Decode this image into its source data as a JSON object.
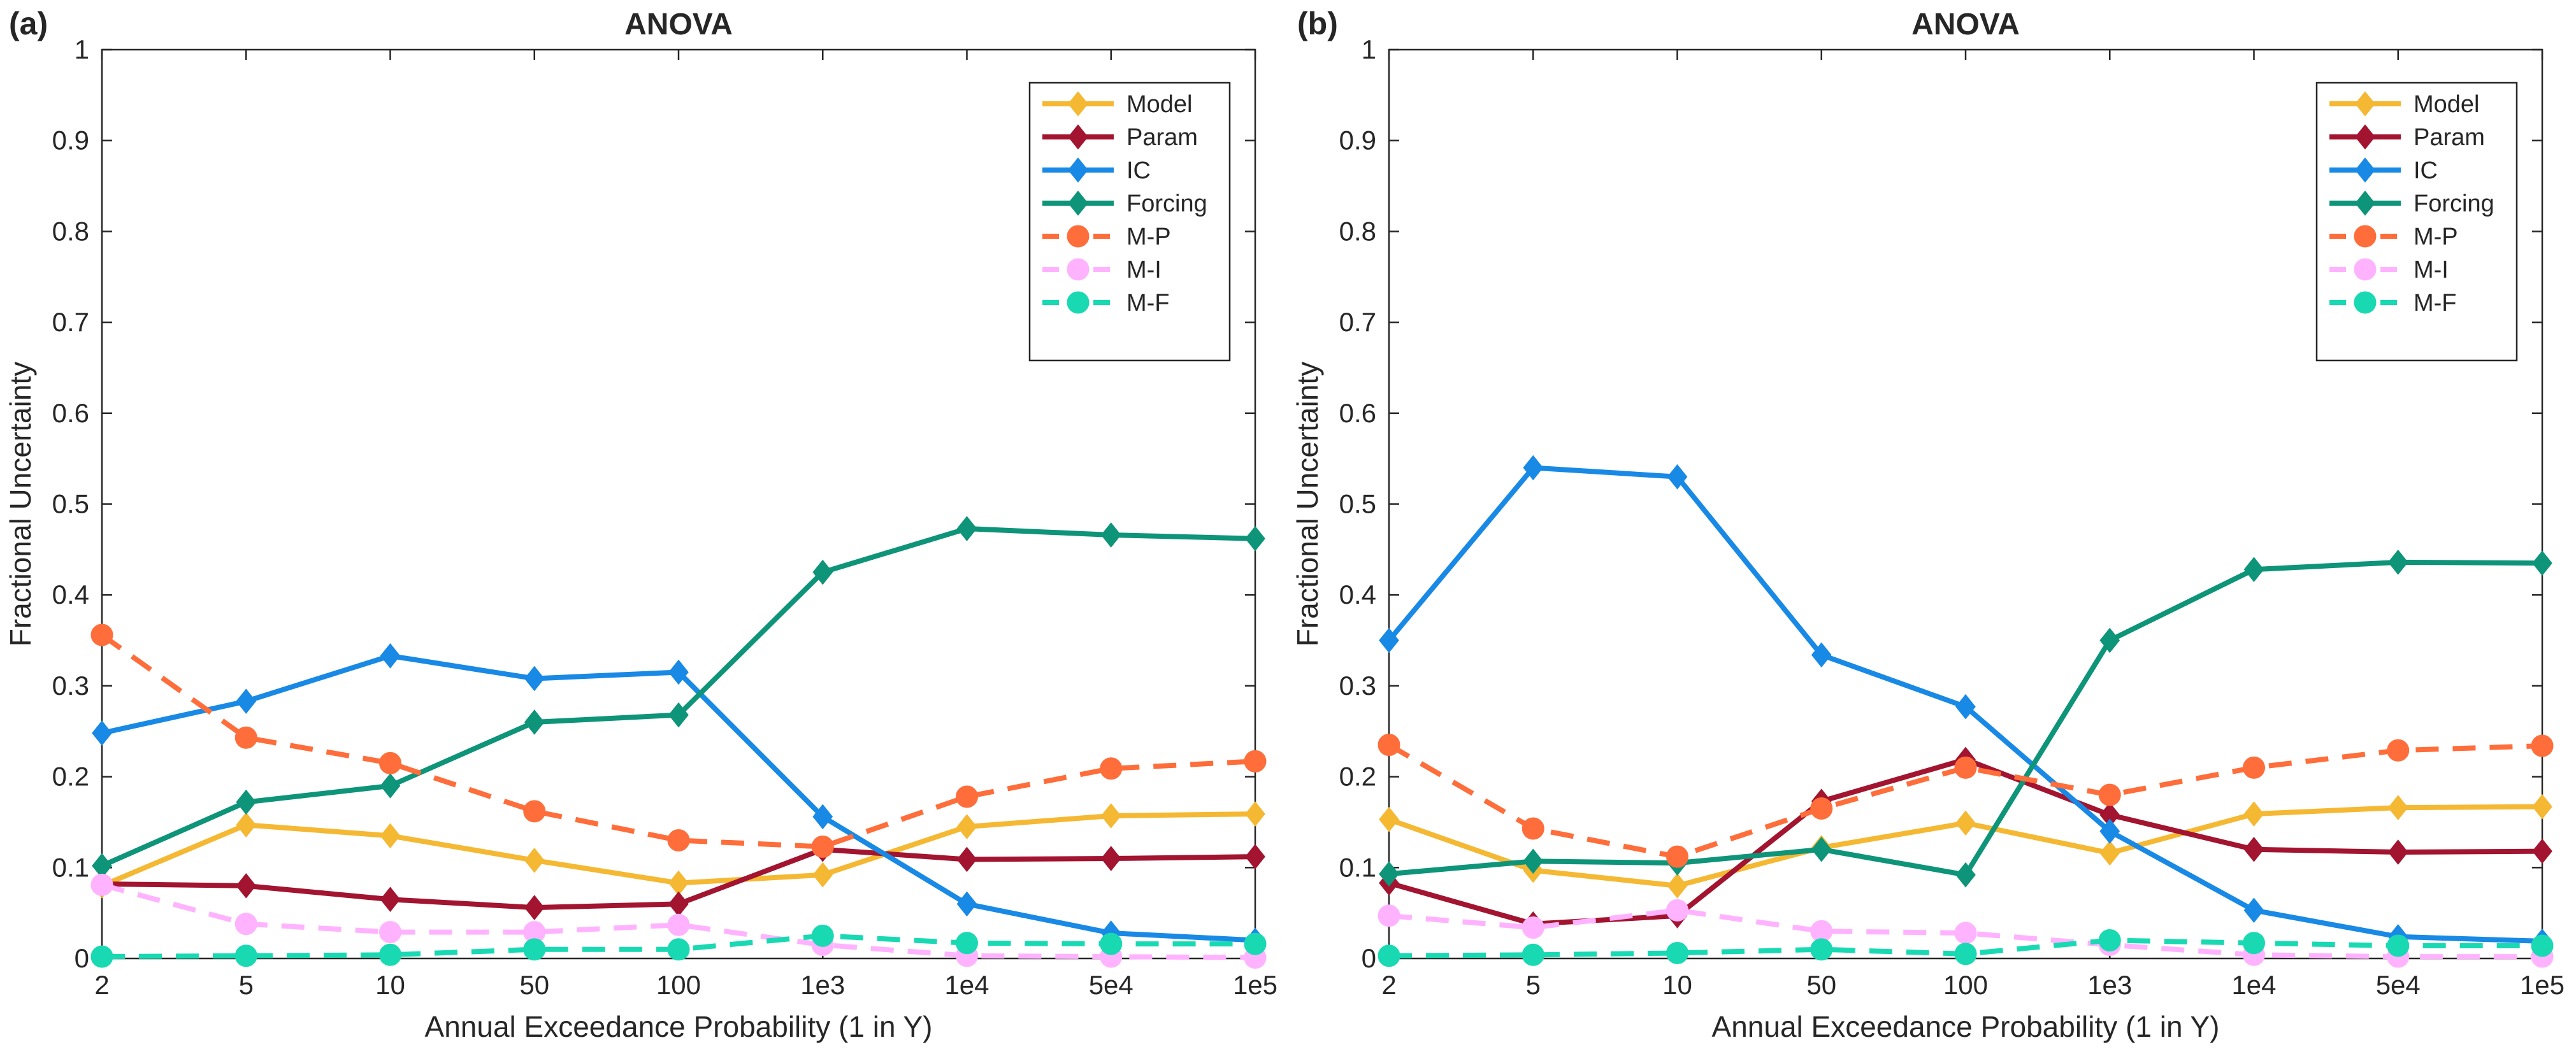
{
  "chart_data": [
    {
      "type": "line",
      "panel_label": "(a)",
      "title": "ANOVA",
      "xlabel": "Annual Exceedance Probability (1 in Y)",
      "ylabel": "Fractional Uncertainty",
      "categories": [
        "2",
        "5",
        "10",
        "50",
        "100",
        "1e3",
        "1e4",
        "5e4",
        "1e5"
      ],
      "ylim": [
        0,
        1
      ],
      "yticks": [
        "0",
        "0.1",
        "0.2",
        "0.3",
        "0.4",
        "0.5",
        "0.6",
        "0.7",
        "0.8",
        "0.9",
        "1"
      ],
      "legend_position": "top-right",
      "series": [
        {
          "name": "Model",
          "color": "#f5b833",
          "marker": "diamond",
          "style": "solid",
          "values": [
            0.08,
            0.147,
            0.135,
            0.108,
            0.083,
            0.092,
            0.145,
            0.157,
            0.159
          ]
        },
        {
          "name": "Param",
          "color": "#a2142f",
          "marker": "diamond",
          "style": "solid",
          "values": [
            0.082,
            0.08,
            0.065,
            0.056,
            0.06,
            0.12,
            0.109,
            0.11,
            0.112
          ]
        },
        {
          "name": "IC",
          "color": "#1889e5",
          "marker": "diamond",
          "style": "solid",
          "values": [
            0.248,
            0.283,
            0.333,
            0.308,
            0.315,
            0.156,
            0.06,
            0.028,
            0.02
          ]
        },
        {
          "name": "Forcing",
          "color": "#0d9479",
          "marker": "diamond",
          "style": "solid",
          "values": [
            0.102,
            0.172,
            0.19,
            0.26,
            0.268,
            0.425,
            0.473,
            0.466,
            0.462
          ]
        },
        {
          "name": "M-P",
          "color": "#ff6d3a",
          "marker": "circle",
          "style": "dashed",
          "values": [
            0.356,
            0.243,
            0.215,
            0.162,
            0.13,
            0.123,
            0.178,
            0.209,
            0.217
          ]
        },
        {
          "name": "M-I",
          "color": "#ffb3ff",
          "marker": "circle",
          "style": "dashed",
          "values": [
            0.081,
            0.038,
            0.029,
            0.029,
            0.037,
            0.015,
            0.003,
            0.002,
            0.001
          ]
        },
        {
          "name": "M-F",
          "color": "#19d9b3",
          "marker": "circle",
          "style": "dashed",
          "values": [
            0.002,
            0.003,
            0.004,
            0.01,
            0.01,
            0.025,
            0.017,
            0.016,
            0.016
          ]
        }
      ]
    },
    {
      "type": "line",
      "panel_label": "(b)",
      "title": "ANOVA",
      "xlabel": "Annual Exceedance Probability (1 in Y)",
      "ylabel": "Fractional Uncertainty",
      "categories": [
        "2",
        "5",
        "10",
        "50",
        "100",
        "1e3",
        "1e4",
        "5e4",
        "1e5"
      ],
      "ylim": [
        0,
        1
      ],
      "yticks": [
        "0",
        "0.1",
        "0.2",
        "0.3",
        "0.4",
        "0.5",
        "0.6",
        "0.7",
        "0.8",
        "0.9",
        "1"
      ],
      "legend_position": "top-right",
      "series": [
        {
          "name": "Model",
          "color": "#f5b833",
          "marker": "diamond",
          "style": "solid",
          "values": [
            0.153,
            0.097,
            0.08,
            0.122,
            0.149,
            0.116,
            0.159,
            0.166,
            0.167
          ]
        },
        {
          "name": "Param",
          "color": "#a2142f",
          "marker": "diamond",
          "style": "solid",
          "values": [
            0.083,
            0.038,
            0.047,
            0.173,
            0.219,
            0.158,
            0.12,
            0.117,
            0.118
          ]
        },
        {
          "name": "IC",
          "color": "#1889e5",
          "marker": "diamond",
          "style": "solid",
          "values": [
            0.35,
            0.54,
            0.53,
            0.334,
            0.277,
            0.14,
            0.053,
            0.024,
            0.019
          ]
        },
        {
          "name": "Forcing",
          "color": "#0d9479",
          "marker": "diamond",
          "style": "solid",
          "values": [
            0.093,
            0.107,
            0.105,
            0.12,
            0.092,
            0.35,
            0.428,
            0.436,
            0.435
          ]
        },
        {
          "name": "M-P",
          "color": "#ff6d3a",
          "marker": "circle",
          "style": "dashed",
          "values": [
            0.235,
            0.143,
            0.112,
            0.165,
            0.21,
            0.18,
            0.21,
            0.229,
            0.234
          ]
        },
        {
          "name": "M-I",
          "color": "#ffb3ff",
          "marker": "circle",
          "style": "dashed",
          "values": [
            0.047,
            0.034,
            0.053,
            0.03,
            0.028,
            0.015,
            0.004,
            0.002,
            0.002
          ]
        },
        {
          "name": "M-F",
          "color": "#19d9b3",
          "marker": "circle",
          "style": "dashed",
          "values": [
            0.003,
            0.004,
            0.006,
            0.01,
            0.005,
            0.02,
            0.017,
            0.014,
            0.014
          ]
        }
      ]
    }
  ]
}
